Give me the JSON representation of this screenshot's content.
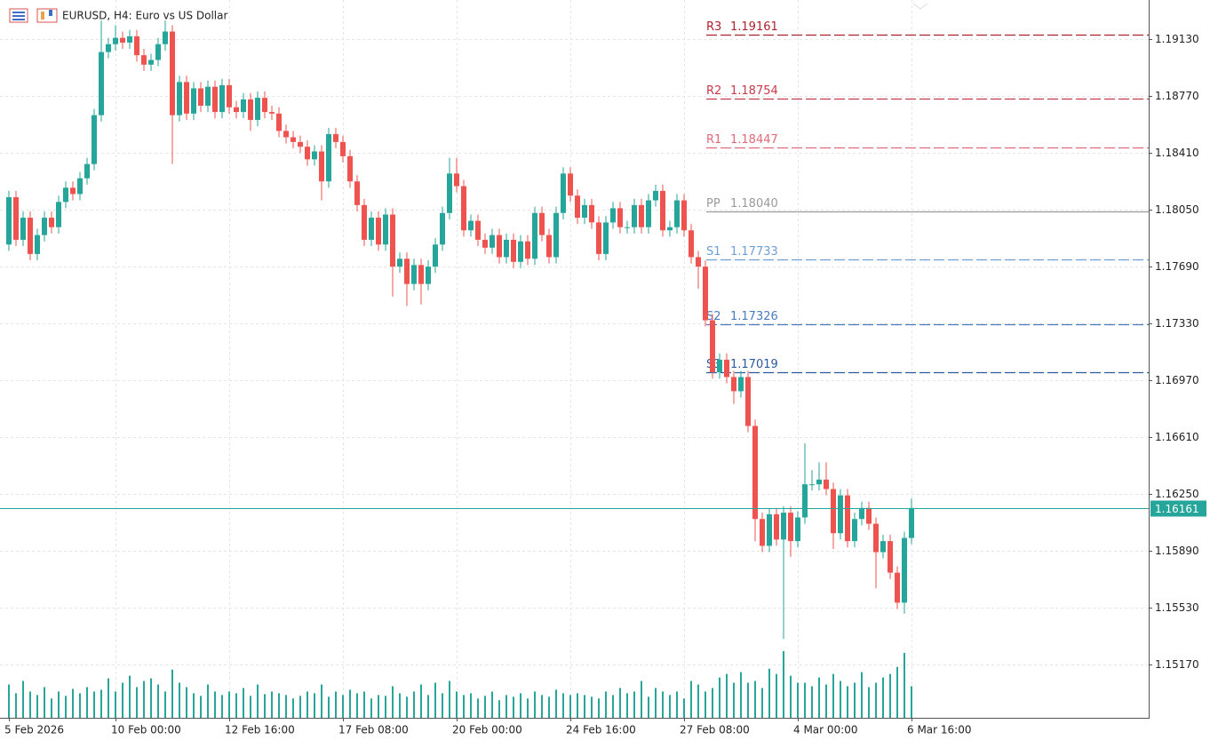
{
  "chart_data": {
    "type": "candlestick",
    "title": "EURUSD, H4:  Euro vs US Dollar",
    "categories": [
      "5 Feb 2026",
      null,
      null,
      null,
      null,
      null,
      null,
      null,
      null,
      null,
      null,
      null,
      null,
      null,
      null,
      "10 Feb 00:00",
      null,
      null,
      null,
      null,
      null,
      null,
      null,
      null,
      null,
      null,
      null,
      null,
      null,
      null,
      null,
      "12 Feb 16:00",
      null,
      null,
      null,
      null,
      null,
      null,
      null,
      null,
      null,
      null,
      null,
      null,
      null,
      null,
      null,
      "17 Feb 08:00",
      null,
      null,
      null,
      null,
      null,
      null,
      null,
      null,
      null,
      null,
      null,
      null,
      null,
      null,
      null,
      "20 Feb 00:00",
      null,
      null,
      null,
      null,
      null,
      null,
      null,
      null,
      null,
      null,
      null,
      null,
      null,
      null,
      null,
      "24 Feb 16:00",
      null,
      null,
      null,
      null,
      null,
      null,
      null,
      null,
      null,
      null,
      null,
      null,
      null,
      null,
      null,
      "27 Feb 08:00",
      null,
      null,
      null,
      null,
      null,
      null,
      null,
      null,
      null,
      null,
      null,
      null,
      null,
      null,
      null,
      "4 Mar 00:00",
      null,
      null,
      null,
      null,
      null,
      null,
      null,
      null,
      null,
      null,
      null,
      null,
      null,
      null,
      null,
      "6 Mar 16:00"
    ],
    "open": [
      1.1783,
      1.1813,
      1.1786,
      1.18,
      1.1777,
      1.1789,
      1.18,
      1.1794,
      1.181,
      1.1819,
      1.1815,
      1.1825,
      1.1834,
      1.1865,
      1.1905,
      1.191,
      1.1914,
      1.1911,
      1.1915,
      1.1903,
      1.1897,
      1.19,
      1.191,
      1.1918,
      1.1865,
      1.1886,
      1.1866,
      1.1882,
      1.1871,
      1.1883,
      1.1867,
      1.1884,
      1.187,
      1.1867,
      1.1875,
      1.1862,
      1.1876,
      1.1867,
      1.1866,
      1.1855,
      1.1851,
      1.1848,
      1.1845,
      1.1837,
      1.1842,
      1.1823,
      1.1853,
      1.1848,
      1.1839,
      1.1823,
      1.1808,
      1.1786,
      1.18,
      1.1783,
      1.1802,
      1.1769,
      1.1774,
      1.1758,
      1.177,
      1.1758,
      1.1769,
      1.1783,
      1.1803,
      1.1828,
      1.182,
      1.1792,
      1.1798,
      1.1786,
      1.1781,
      1.1789,
      1.1775,
      1.1786,
      1.1772,
      1.1785,
      1.1774,
      1.1803,
      1.1789,
      1.1775,
      1.1803,
      1.1828,
      1.1814,
      1.18,
      1.1808,
      1.1797,
      1.1777,
      1.1797,
      1.1806,
      1.1794,
      1.1794,
      1.1808,
      1.1794,
      1.1811,
      1.1817,
      1.1792,
      1.1794,
      1.1811,
      1.1792,
      1.1775,
      1.1769,
      1.1735,
      1.1702,
      1.171,
      1.1699,
      1.169,
      1.1699,
      1.1668,
      1.1609,
      1.1592,
      1.1612,
      1.1596,
      1.1613,
      1.1595,
      1.161,
      1.1631,
      1.1631,
      1.1634,
      1.1628,
      1.16,
      1.1624,
      1.1595,
      1.1609,
      1.1616,
      1.1606,
      1.1588,
      1.1595,
      1.1575,
      1.1556,
      1.1597
    ],
    "high": [
      1.1817,
      1.1817,
      1.1804,
      1.1804,
      1.1793,
      1.1804,
      1.1804,
      1.1814,
      1.1823,
      1.1823,
      1.1829,
      1.1838,
      1.1869,
      1.1925,
      1.1914,
      1.1922,
      1.1918,
      1.1919,
      1.1919,
      1.1907,
      1.1904,
      1.1914,
      1.1925,
      1.1922,
      1.189,
      1.189,
      1.1886,
      1.1886,
      1.1887,
      1.1887,
      1.1888,
      1.1888,
      1.1874,
      1.1879,
      1.1879,
      1.188,
      1.188,
      1.1871,
      1.187,
      1.1859,
      1.1855,
      1.1852,
      1.1849,
      1.1846,
      1.1846,
      1.1857,
      1.1857,
      1.1852,
      1.1843,
      1.1827,
      1.1812,
      1.1804,
      1.1804,
      1.1806,
      1.1806,
      1.1778,
      1.1778,
      1.1774,
      1.1774,
      1.1773,
      1.1787,
      1.1807,
      1.1838,
      1.1838,
      1.1824,
      1.1802,
      1.1802,
      1.179,
      1.1793,
      1.1793,
      1.179,
      1.179,
      1.1789,
      1.1789,
      1.1807,
      1.1807,
      1.1793,
      1.1807,
      1.1832,
      1.1832,
      1.1818,
      1.1812,
      1.1812,
      1.1801,
      1.1801,
      1.181,
      1.181,
      1.1798,
      1.1812,
      1.1812,
      1.1815,
      1.1821,
      1.1821,
      1.1798,
      1.1815,
      1.1815,
      1.1796,
      1.1779,
      1.1773,
      1.1739,
      1.1714,
      1.1714,
      1.1703,
      1.1703,
      1.1703,
      1.1672,
      1.1613,
      1.1616,
      1.1616,
      1.1617,
      1.1617,
      1.1614,
      1.1657,
      1.164,
      1.1645,
      1.1645,
      1.1632,
      1.1628,
      1.1628,
      1.1613,
      1.162,
      1.162,
      1.161,
      1.1599,
      1.1599,
      1.1579,
      1.1601,
      1.1622
    ],
    "low": [
      1.1779,
      1.1782,
      1.1782,
      1.1773,
      1.1773,
      1.1785,
      1.179,
      1.179,
      1.1806,
      1.1811,
      1.1811,
      1.1821,
      1.183,
      1.1861,
      1.1901,
      1.1906,
      1.1907,
      1.1907,
      1.1899,
      1.1893,
      1.1893,
      1.1896,
      1.1906,
      1.1834,
      1.1861,
      1.1862,
      1.1862,
      1.1867,
      1.1867,
      1.1863,
      1.1863,
      1.1866,
      1.1863,
      1.1863,
      1.1855,
      1.1858,
      1.1863,
      1.1862,
      1.1851,
      1.1847,
      1.1844,
      1.1841,
      1.1833,
      1.1833,
      1.1811,
      1.1819,
      1.1844,
      1.1835,
      1.1819,
      1.1804,
      1.1782,
      1.1782,
      1.1779,
      1.1779,
      1.175,
      1.1765,
      1.1744,
      1.1754,
      1.1745,
      1.1754,
      1.1765,
      1.1779,
      1.1799,
      1.1816,
      1.1788,
      1.1788,
      1.1782,
      1.1777,
      1.1777,
      1.1771,
      1.1771,
      1.1768,
      1.1768,
      1.177,
      1.177,
      1.1785,
      1.1771,
      1.1771,
      1.1799,
      1.181,
      1.1796,
      1.1796,
      1.1793,
      1.1773,
      1.1773,
      1.1793,
      1.179,
      1.179,
      1.179,
      1.179,
      1.179,
      1.1807,
      1.1788,
      1.1788,
      1.179,
      1.1788,
      1.1771,
      1.1755,
      1.1731,
      1.1698,
      1.1698,
      1.1695,
      1.1682,
      1.1686,
      1.1664,
      1.1595,
      1.1588,
      1.1588,
      1.1592,
      1.1533,
      1.1585,
      1.1591,
      1.1606,
      1.1627,
      1.1627,
      1.1624,
      1.159,
      1.1596,
      1.1591,
      1.1591,
      1.1605,
      1.1602,
      1.1565,
      1.1584,
      1.1571,
      1.1552,
      1.1549,
      1.1593
    ],
    "close": [
      1.1813,
      1.1786,
      1.18,
      1.1777,
      1.1789,
      1.18,
      1.1794,
      1.181,
      1.1819,
      1.1815,
      1.1825,
      1.1834,
      1.1865,
      1.1905,
      1.191,
      1.1914,
      1.1911,
      1.1915,
      1.1903,
      1.1897,
      1.19,
      1.191,
      1.1918,
      1.1865,
      1.1886,
      1.1866,
      1.1882,
      1.1871,
      1.1883,
      1.1867,
      1.1884,
      1.187,
      1.1867,
      1.1875,
      1.1862,
      1.1876,
      1.1867,
      1.1866,
      1.1855,
      1.1851,
      1.1848,
      1.1845,
      1.1837,
      1.1842,
      1.1823,
      1.1853,
      1.1848,
      1.1839,
      1.1823,
      1.1808,
      1.1786,
      1.18,
      1.1783,
      1.1802,
      1.1769,
      1.1774,
      1.1758,
      1.177,
      1.1758,
      1.1769,
      1.1783,
      1.1803,
      1.1828,
      1.182,
      1.1792,
      1.1798,
      1.1786,
      1.1781,
      1.1789,
      1.1775,
      1.1786,
      1.1772,
      1.1785,
      1.1774,
      1.1803,
      1.1789,
      1.1775,
      1.1803,
      1.1828,
      1.1814,
      1.18,
      1.1808,
      1.1797,
      1.1777,
      1.1797,
      1.1806,
      1.1794,
      1.1794,
      1.1808,
      1.1794,
      1.1811,
      1.1817,
      1.1792,
      1.1794,
      1.1811,
      1.1792,
      1.1775,
      1.1769,
      1.1735,
      1.1702,
      1.171,
      1.1699,
      1.169,
      1.1699,
      1.1668,
      1.1609,
      1.1592,
      1.1612,
      1.1596,
      1.1613,
      1.1595,
      1.161,
      1.1631,
      1.1631,
      1.1634,
      1.1628,
      1.16,
      1.1624,
      1.1595,
      1.1609,
      1.1616,
      1.1606,
      1.1588,
      1.1595,
      1.1575,
      1.1556,
      1.1597,
      1.1616
    ],
    "volume": [
      38,
      28,
      42,
      30,
      26,
      35,
      22,
      30,
      25,
      33,
      28,
      35,
      30,
      32,
      45,
      30,
      40,
      48,
      35,
      42,
      45,
      38,
      30,
      55,
      40,
      35,
      28,
      25,
      38,
      30,
      26,
      30,
      28,
      34,
      25,
      38,
      27,
      30,
      28,
      26,
      22,
      25,
      30,
      28,
      38,
      24,
      30,
      26,
      32,
      28,
      30,
      22,
      26,
      25,
      36,
      28,
      24,
      30,
      38,
      26,
      40,
      28,
      42,
      30,
      26,
      28,
      22,
      25,
      30,
      20,
      26,
      24,
      28,
      22,
      30,
      26,
      24,
      32,
      28,
      26,
      28,
      26,
      24,
      22,
      30,
      26,
      34,
      28,
      30,
      42,
      24,
      34,
      30,
      26,
      30,
      22,
      42,
      38,
      30,
      34,
      46,
      50,
      40,
      52,
      40,
      42,
      34,
      56,
      50,
      76,
      48,
      40,
      40,
      36,
      46,
      38,
      50,
      42,
      36,
      40,
      52,
      35,
      40,
      46,
      50,
      58,
      74,
      36
    ],
    "up_color": "#26a69a",
    "down_color": "#ef5350",
    "volume_color": "#26a69a",
    "ylim": [
      1.1483,
      1.1938
    ],
    "yticks": [
      {
        "value": 1.1913,
        "label": "1.19130"
      },
      {
        "value": 1.1877,
        "label": "1.18770"
      },
      {
        "value": 1.1841,
        "label": "1.18410"
      },
      {
        "value": 1.1805,
        "label": "1.18050"
      },
      {
        "value": 1.1769,
        "label": "1.17690"
      },
      {
        "value": 1.1733,
        "label": "1.17330"
      },
      {
        "value": 1.1697,
        "label": "1.16970"
      },
      {
        "value": 1.1661,
        "label": "1.16610"
      },
      {
        "value": 1.1625,
        "label": "1.16250"
      },
      {
        "value": 1.1589,
        "label": "1.15890"
      },
      {
        "value": 1.1553,
        "label": "1.15530"
      },
      {
        "value": 1.1517,
        "label": "1.15170"
      }
    ],
    "grid": true,
    "pivots": [
      {
        "name": "R3",
        "value": 1.19161,
        "color": "#b0202e",
        "dashed": true
      },
      {
        "name": "R2",
        "value": 1.18754,
        "color": "#c83a4a",
        "dashed": true
      },
      {
        "name": "R1",
        "value": 1.18447,
        "color": "#e06a78",
        "dashed": true
      },
      {
        "name": "PP",
        "value": 1.1804,
        "value_label": "1.18040",
        "color": "#9a9a9a",
        "dashed": false
      },
      {
        "name": "S1",
        "value": 1.17733,
        "color": "#6f9fd8",
        "dashed": true
      },
      {
        "name": "S2",
        "value": 1.17326,
        "color": "#4a7bc0",
        "dashed": true
      },
      {
        "name": "S3",
        "value": 1.17019,
        "color": "#2c5a9e",
        "dashed": true
      }
    ],
    "current_price": 1.16161,
    "current_color": "#26a69a"
  }
}
